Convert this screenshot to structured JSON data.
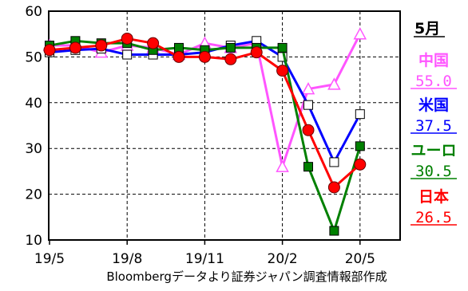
{
  "chart_data": {
    "type": "line",
    "title": "",
    "x": [
      "19/5",
      "19/6",
      "19/7",
      "19/8",
      "19/9",
      "19/10",
      "19/11",
      "19/12",
      "20/1",
      "20/2",
      "20/3",
      "20/4",
      "20/5"
    ],
    "x_tick_labels": [
      "19/5",
      "19/8",
      "19/11",
      "20/2",
      "20/5"
    ],
    "ylim": [
      10,
      60
    ],
    "y_ticks": [
      10,
      20,
      30,
      40,
      50,
      60
    ],
    "grid": "horizontal dashed and vertical dashed",
    "legend_position": "right",
    "legend_month": "5月",
    "source": "Bloombergデータより証券ジャパン調査情報部作成",
    "series": [
      {
        "name": "中国",
        "color": "#ff55ff",
        "marker": "open-triangle",
        "values": [
          52.5,
          52.5,
          51.0,
          52.5,
          52.0,
          50.5,
          53.0,
          52.0,
          53.0,
          26.0,
          43.0,
          44.0,
          55.0
        ],
        "last_label": "55.0"
      },
      {
        "name": "米国",
        "color": "#0000ff",
        "marker": "open-square",
        "values": [
          51.0,
          51.5,
          51.8,
          50.5,
          50.5,
          50.5,
          51.0,
          52.5,
          53.5,
          50.0,
          39.5,
          27.0,
          37.5
        ],
        "last_label": "37.5"
      },
      {
        "name": "ユーロ",
        "color": "#008000",
        "marker": "filled-square",
        "values": [
          52.5,
          53.5,
          53.0,
          53.0,
          51.5,
          52.0,
          51.5,
          52.0,
          52.0,
          52.0,
          26.0,
          12.0,
          30.5
        ],
        "last_label": "30.5"
      },
      {
        "name": "日本",
        "color": "#ff0000",
        "marker": "filled-circle",
        "values": [
          51.5,
          52.0,
          52.5,
          54.0,
          53.0,
          50.0,
          50.0,
          49.5,
          51.0,
          47.0,
          34.0,
          21.5,
          26.5
        ],
        "last_label": "26.5"
      }
    ]
  }
}
